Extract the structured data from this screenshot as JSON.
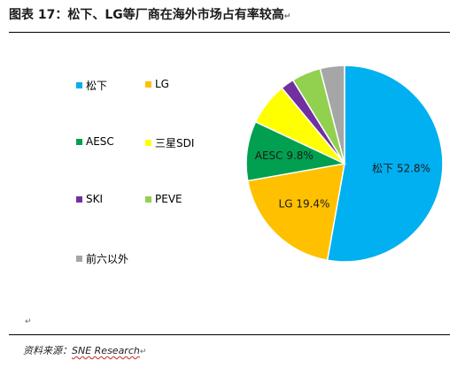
{
  "figure": {
    "title": "图表 17：松下、LG等厂商在海外市场占有率较高",
    "title_mark": "↵",
    "para_mark": "↵",
    "source_prefix": "资料来源：",
    "source_name": "SNE Research",
    "source_mark": "↵"
  },
  "chart_data": {
    "type": "pie",
    "title": "",
    "legend_placement": "left",
    "slices": [
      {
        "name": "松下",
        "value": 52.8,
        "color": "#00b0f0",
        "label": "松下 52.8%"
      },
      {
        "name": "LG",
        "value": 19.4,
        "color": "#ffc000",
        "label": "LG 19.4%"
      },
      {
        "name": "AESC",
        "value": 9.8,
        "color": "#00a050",
        "label": "AESC 9.8%"
      },
      {
        "name": "三星SDI",
        "value": 7.0,
        "color": "#ffff00",
        "label": ""
      },
      {
        "name": "SKI",
        "value": 2.2,
        "color": "#7030a0",
        "label": ""
      },
      {
        "name": "PEVE",
        "value": 4.8,
        "color": "#92d050",
        "label": ""
      },
      {
        "name": "前六以外",
        "value": 4.0,
        "color": "#a6a6a6",
        "label": ""
      }
    ]
  }
}
